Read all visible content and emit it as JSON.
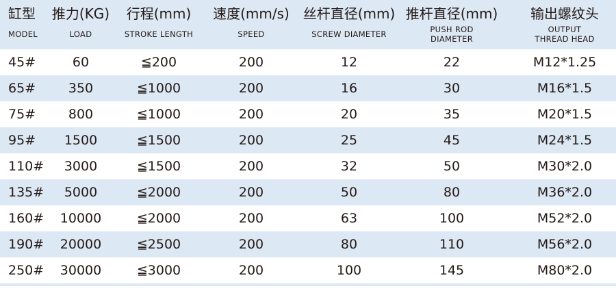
{
  "headers": [
    {
      "zh": "缸型",
      "en": "MODEL"
    },
    {
      "zh": "推力(KG)",
      "en": "LOAD"
    },
    {
      "zh": "行程(mm)",
      "en": "STROKE LENGTH"
    },
    {
      "zh": "速度(mm/s)",
      "en": "SPEED"
    },
    {
      "zh": "丝杆直径(mm)",
      "en": "SCREW DIAMETER"
    },
    {
      "zh": "推杆直径(mm)",
      "en1": "PUSH ROD",
      "en2": "DIAMETER"
    },
    {
      "zh": "输出螺纹头",
      "en1": "OUTPUT",
      "en2": "THREAD HEAD"
    }
  ],
  "rows": [
    [
      "45#",
      "60",
      "≦200",
      "200",
      "12",
      "22",
      "M12*1.25"
    ],
    [
      "65#",
      "350",
      "≦1000",
      "200",
      "16",
      "30",
      "M16*1.5"
    ],
    [
      "75#",
      "800",
      "≦1000",
      "200",
      "20",
      "35",
      "M20*1.5"
    ],
    [
      "95#",
      "1500",
      "≦1500",
      "200",
      "25",
      "45",
      "M24*1.5"
    ],
    [
      "110#",
      "3000",
      "≦1500",
      "200",
      "32",
      "50",
      "M30*2.0"
    ],
    [
      "135#",
      "5000",
      "≦2000",
      "200",
      "50",
      "80",
      "M36*2.0"
    ],
    [
      "160#",
      "10000",
      "≦2000",
      "200",
      "63",
      "100",
      "M52*2.0"
    ],
    [
      "190#",
      "20000",
      "≦2500",
      "200",
      "80",
      "110",
      "M56*2.0"
    ],
    [
      "250#",
      "30000",
      "≦3000",
      "200",
      "100",
      "145",
      "M80*2.0"
    ]
  ],
  "colors": {
    "stripe": "#dce8f4",
    "text": "#231815"
  }
}
